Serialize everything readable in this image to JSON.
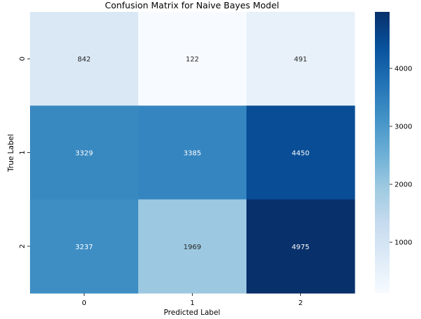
{
  "chart_data": {
    "type": "heatmap",
    "title": "Confusion Matrix for Naive Bayes Model",
    "xlabel": "Predicted Label",
    "ylabel": "True Label",
    "x_categories": [
      "0",
      "1",
      "2"
    ],
    "y_categories": [
      "0",
      "1",
      "2"
    ],
    "values": [
      [
        842,
        122,
        491
      ],
      [
        3329,
        3385,
        4450
      ],
      [
        3237,
        1969,
        4975
      ]
    ],
    "colormap": "Blues",
    "color_range": [
      122,
      4975
    ],
    "colorbar_ticks": [
      1000,
      2000,
      3000,
      4000
    ],
    "colors": {
      "low": "#f7fbff",
      "high": "#08306b",
      "text_light": "#ffffff",
      "text_dark": "#262626"
    }
  }
}
